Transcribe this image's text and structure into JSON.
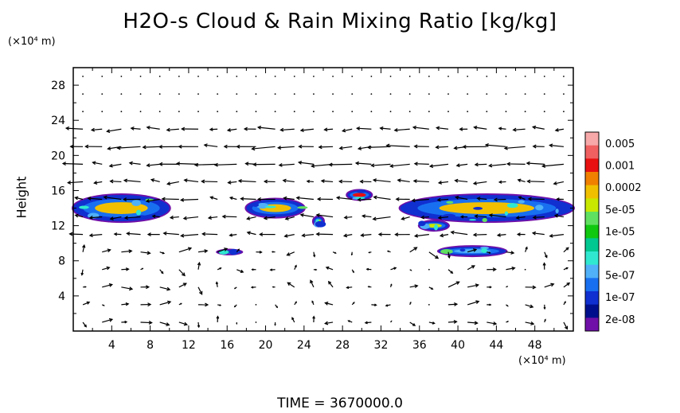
{
  "chart_data": {
    "type": "heatmap",
    "title": "H2O-s Cloud & Rain Mixing Ratio [kg/kg]",
    "ylabel": "Height",
    "yunit_label": "(×10⁴ m)",
    "xunit_label": "(×10⁴ m)",
    "xlim": [
      0,
      52
    ],
    "ylim": [
      0,
      30
    ],
    "xticks": [
      4,
      8,
      12,
      16,
      20,
      24,
      28,
      32,
      36,
      40,
      44,
      48
    ],
    "yticks": [
      4,
      8,
      12,
      16,
      20,
      24,
      28
    ],
    "footer": "TIME = 3670000.0",
    "colorbar": {
      "labels": [
        "0.005",
        "0.001",
        "0.0002",
        "5e-05",
        "1e-05",
        "2e-06",
        "5e-07",
        "1e-07",
        "2e-08"
      ],
      "colors": [
        "#f7a8a8",
        "#f06060",
        "#e81010",
        "#f08000",
        "#f0c000",
        "#c8e800",
        "#60e060",
        "#10c810",
        "#00c890",
        "#30e8d0",
        "#50b0f8",
        "#1870f0",
        "#1030d0",
        "#00108c",
        "#7010a8"
      ]
    },
    "cloud_regions": [
      {
        "x": [
          0,
          10
        ],
        "y": [
          12.5,
          15.5
        ],
        "level": "5e-07"
      },
      {
        "x": [
          18,
          24
        ],
        "y": [
          13,
          15
        ],
        "level": "5e-07"
      },
      {
        "x": [
          28.5,
          31
        ],
        "y": [
          15,
          16
        ],
        "level": "1e-07"
      },
      {
        "x": [
          34,
          52
        ],
        "y": [
          12.5,
          15.5
        ],
        "level": "5e-07"
      },
      {
        "x": [
          36,
          39
        ],
        "y": [
          11.5,
          12.5
        ],
        "level": "2e-06"
      },
      {
        "x": [
          25,
          26
        ],
        "y": [
          12,
          13
        ],
        "level": "2e-06"
      },
      {
        "x": [
          15,
          17.5
        ],
        "y": [
          8.8,
          9.2
        ],
        "level": "5e-05"
      },
      {
        "x": [
          38,
          45
        ],
        "y": [
          8.6,
          9.6
        ],
        "level": "0.0002"
      }
    ]
  }
}
